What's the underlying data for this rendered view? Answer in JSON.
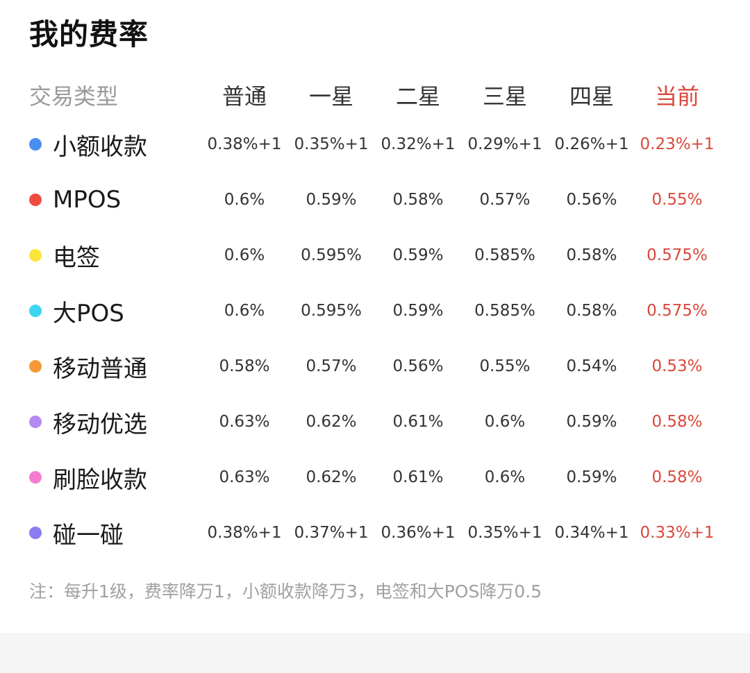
{
  "title": "我的费率",
  "header": {
    "type_label": "交易类型",
    "levels": [
      "普通",
      "一星",
      "二星",
      "三星",
      "四星",
      "当前"
    ]
  },
  "rows": [
    {
      "type": "小额收款",
      "dot_color": "#4a8ff0",
      "rates": [
        "0.38%+1",
        "0.35%+1",
        "0.32%+1",
        "0.29%+1",
        "0.26%+1",
        "0.23%+1"
      ]
    },
    {
      "type": "MPOS",
      "dot_color": "#ef4b3f",
      "rates": [
        "0.6%",
        "0.59%",
        "0.58%",
        "0.57%",
        "0.56%",
        "0.55%"
      ]
    },
    {
      "type": "电签",
      "dot_color": "#fbe53a",
      "rates": [
        "0.6%",
        "0.595%",
        "0.59%",
        "0.585%",
        "0.58%",
        "0.575%"
      ]
    },
    {
      "type": "大POS",
      "dot_color": "#3fd4ef",
      "rates": [
        "0.6%",
        "0.595%",
        "0.59%",
        "0.585%",
        "0.58%",
        "0.575%"
      ]
    },
    {
      "type": "移动普通",
      "dot_color": "#f5983a",
      "rates": [
        "0.58%",
        "0.57%",
        "0.56%",
        "0.55%",
        "0.54%",
        "0.53%"
      ]
    },
    {
      "type": "移动优选",
      "dot_color": "#b28af2",
      "rates": [
        "0.63%",
        "0.62%",
        "0.61%",
        "0.6%",
        "0.59%",
        "0.58%"
      ]
    },
    {
      "type": "刷脸收款",
      "dot_color": "#f57cd0",
      "rates": [
        "0.63%",
        "0.62%",
        "0.61%",
        "0.6%",
        "0.59%",
        "0.58%"
      ]
    },
    {
      "type": "碰一碰",
      "dot_color": "#8a7cf0",
      "rates": [
        "0.38%+1",
        "0.37%+1",
        "0.36%+1",
        "0.35%+1",
        "0.34%+1",
        "0.33%+1"
      ]
    }
  ],
  "note": "注：每升1级，费率降万1，小额收款降万3，电签和大POS降万0.5",
  "colors": {
    "current_level": "#d9483b",
    "header_gray": "#9a9a9a",
    "text_dark": "#333333"
  }
}
